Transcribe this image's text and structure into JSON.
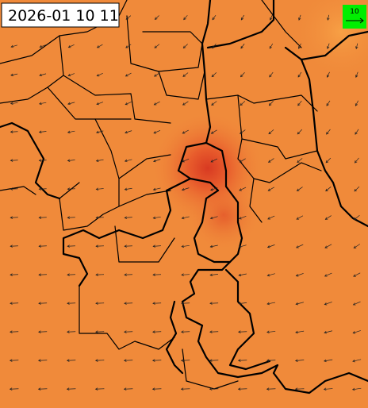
{
  "timestamp": "2026-01 10 11",
  "legend": {
    "label": "10"
  }
}
